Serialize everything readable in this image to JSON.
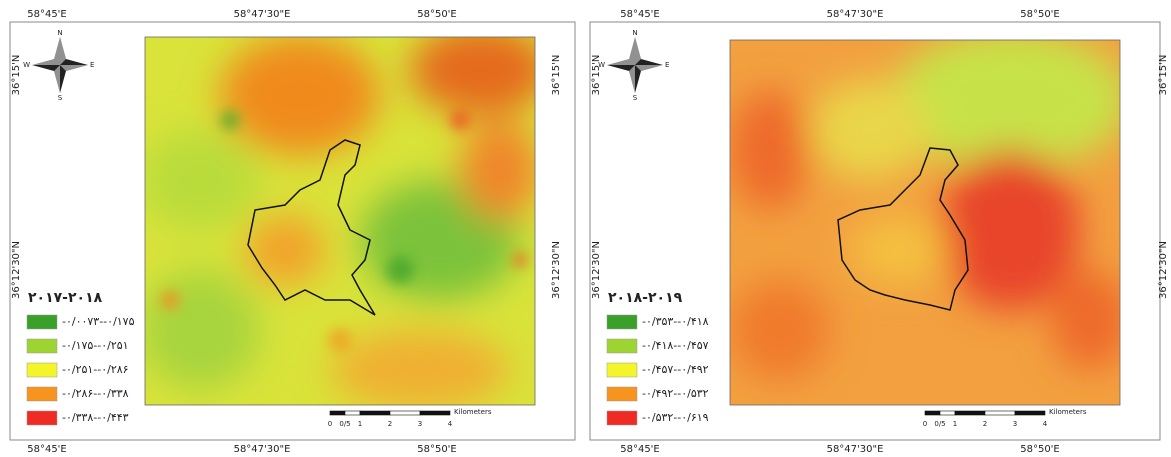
{
  "panels": [
    {
      "title": "۲۰۱۷-۲۰۱۸",
      "coords": {
        "top": [
          "58°45'E",
          "58°47'30\"E",
          "58°50'E"
        ],
        "bottom": [
          "58°45'E",
          "58°47'30\"E",
          "58°50'E"
        ],
        "left": [
          "36°15'N",
          "36°12'30\"N"
        ],
        "right": [
          "36°15'N",
          "36°12'30\"N"
        ]
      },
      "legend": [
        {
          "label": "-۰/۰۰۷۳--۰/۱۷۵",
          "color": "#3aa02a"
        },
        {
          "label": "-۰/۱۷۵--۰/۲۵۱",
          "color": "#9ed431"
        },
        {
          "label": "-۰/۲۵۱--۰/۲۸۶",
          "color": "#f4f42a"
        },
        {
          "label": "-۰/۲۸۶--۰/۳۳۸",
          "color": "#f7941d"
        },
        {
          "label": "-۰/۳۳۸--۰/۴۴۳",
          "color": "#ef2b24"
        }
      ],
      "scale": {
        "ticks": [
          "0",
          "0/5",
          "1",
          "2",
          "3",
          "4"
        ],
        "unit": "Kilometers"
      },
      "north": {
        "n": "N",
        "e": "E",
        "s": "S",
        "w": "W"
      }
    },
    {
      "title": "۲۰۱۸-۲۰۱۹",
      "coords": {
        "top": [
          "58°45'E",
          "58°47'30\"E",
          "58°50'E"
        ],
        "bottom": [
          "58°45'E",
          "58°47'30\"E",
          "58°50'E"
        ],
        "left": [
          "36°15'N",
          "36°12'30\"N"
        ],
        "right": [
          "36°15'N",
          "36°12'30\"N"
        ]
      },
      "legend": [
        {
          "label": "-۰/۳۵۳--۰/۴۱۸",
          "color": "#3aa02a"
        },
        {
          "label": "-۰/۴۱۸--۰/۴۵۷",
          "color": "#9ed431"
        },
        {
          "label": "-۰/۴۵۷--۰/۴۹۲",
          "color": "#f4f42a"
        },
        {
          "label": "-۰/۴۹۲--۰/۵۳۲",
          "color": "#f7941d"
        },
        {
          "label": "-۰/۵۳۲--۰/۶۱۹",
          "color": "#ef2b24"
        }
      ],
      "scale": {
        "ticks": [
          "0",
          "0/5",
          "1",
          "2",
          "3",
          "4"
        ],
        "unit": "Kilometers"
      },
      "north": {
        "n": "N",
        "e": "E",
        "s": "S",
        "w": "W"
      }
    }
  ]
}
